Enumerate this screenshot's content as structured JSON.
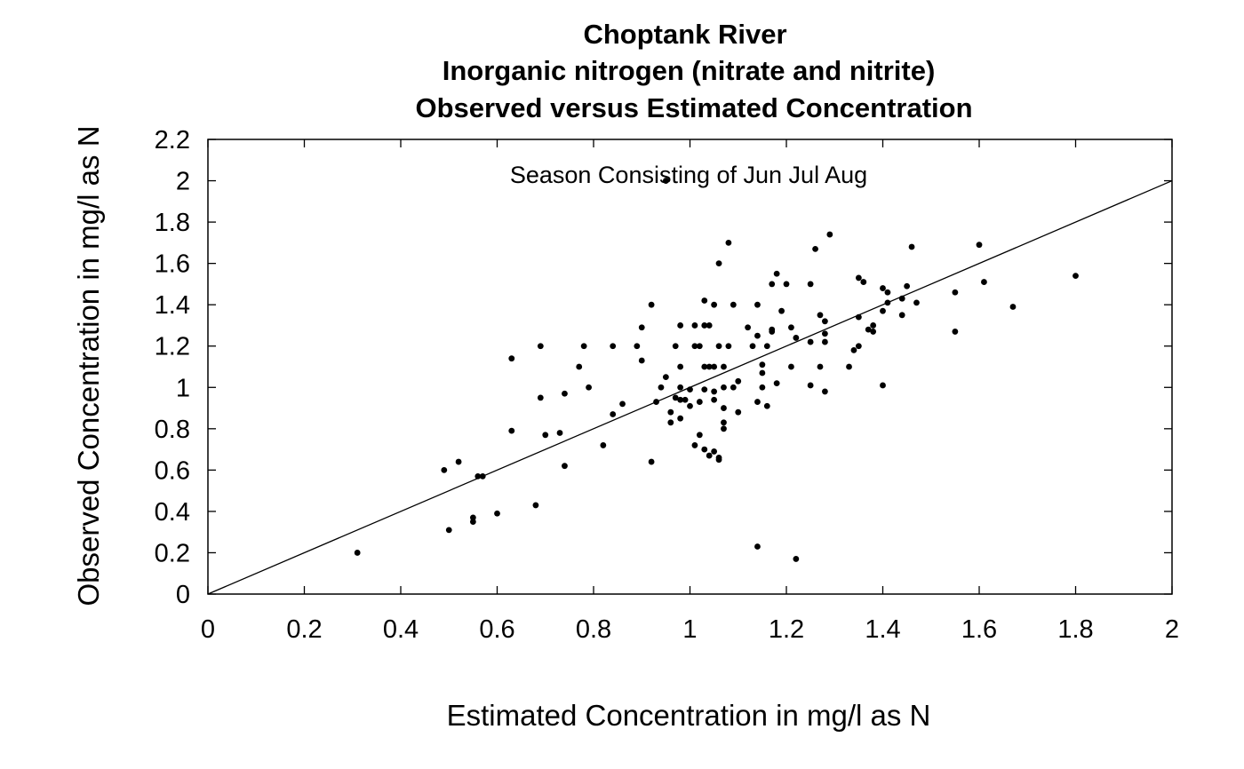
{
  "chart_data": {
    "type": "scatter",
    "title_lines": [
      "Choptank River",
      "Inorganic nitrogen (nitrate and nitrite)",
      "Observed versus Estimated Concentration"
    ],
    "xlabel": "Estimated Concentration in mg/l as N",
    "ylabel": "Observed Concentration in mg/l as N",
    "annotation": "Season Consisting of Jun Jul Aug",
    "xlim": [
      0,
      2
    ],
    "ylim": [
      0,
      2.2
    ],
    "xticks": [
      "0",
      "0.2",
      "0.4",
      "0.6",
      "0.8",
      "1",
      "1.2",
      "1.4",
      "1.6",
      "1.8",
      "2"
    ],
    "yticks": [
      "0",
      "0.2",
      "0.4",
      "0.6",
      "0.8",
      "1",
      "1.2",
      "1.4",
      "1.6",
      "1.8",
      "2",
      "2.2"
    ],
    "reference_line": {
      "from": [
        0,
        0
      ],
      "to": [
        2,
        2
      ]
    },
    "grid": false,
    "points": [
      [
        0.31,
        0.2
      ],
      [
        0.49,
        0.6
      ],
      [
        0.5,
        0.31
      ],
      [
        0.52,
        0.64
      ],
      [
        0.55,
        0.37
      ],
      [
        0.55,
        0.35
      ],
      [
        0.56,
        0.57
      ],
      [
        0.57,
        0.57
      ],
      [
        0.6,
        0.39
      ],
      [
        0.63,
        1.14
      ],
      [
        0.63,
        0.79
      ],
      [
        0.68,
        0.43
      ],
      [
        0.69,
        1.2
      ],
      [
        0.69,
        0.95
      ],
      [
        0.7,
        0.77
      ],
      [
        0.73,
        0.78
      ],
      [
        0.74,
        0.62
      ],
      [
        0.74,
        0.97
      ],
      [
        0.77,
        1.1
      ],
      [
        0.78,
        1.2
      ],
      [
        0.79,
        1.0
      ],
      [
        0.82,
        0.72
      ],
      [
        0.84,
        0.87
      ],
      [
        0.84,
        1.2
      ],
      [
        0.86,
        0.92
      ],
      [
        0.89,
        1.2
      ],
      [
        0.9,
        1.13
      ],
      [
        0.9,
        1.29
      ],
      [
        0.92,
        1.4
      ],
      [
        0.92,
        0.64
      ],
      [
        0.93,
        0.93
      ],
      [
        0.94,
        1.0
      ],
      [
        0.95,
        1.05
      ],
      [
        0.95,
        2.0
      ],
      [
        0.96,
        0.83
      ],
      [
        0.96,
        0.88
      ],
      [
        0.97,
        1.2
      ],
      [
        0.97,
        0.95
      ],
      [
        0.98,
        1.3
      ],
      [
        0.98,
        1.1
      ],
      [
        0.98,
        0.94
      ],
      [
        0.98,
        0.85
      ],
      [
        0.98,
        1.0
      ],
      [
        0.99,
        0.94
      ],
      [
        1.0,
        0.99
      ],
      [
        1.0,
        0.91
      ],
      [
        1.01,
        1.2
      ],
      [
        1.01,
        1.3
      ],
      [
        1.01,
        0.72
      ],
      [
        1.02,
        1.2
      ],
      [
        1.02,
        0.77
      ],
      [
        1.02,
        0.93
      ],
      [
        1.03,
        1.42
      ],
      [
        1.03,
        1.3
      ],
      [
        1.03,
        1.1
      ],
      [
        1.03,
        0.99
      ],
      [
        1.03,
        0.7
      ],
      [
        1.04,
        1.3
      ],
      [
        1.04,
        1.1
      ],
      [
        1.04,
        0.67
      ],
      [
        1.05,
        1.1
      ],
      [
        1.05,
        0.98
      ],
      [
        1.05,
        1.4
      ],
      [
        1.05,
        0.94
      ],
      [
        1.05,
        0.69
      ],
      [
        1.06,
        1.6
      ],
      [
        1.06,
        1.2
      ],
      [
        1.06,
        0.66
      ],
      [
        1.06,
        0.65
      ],
      [
        1.07,
        1.1
      ],
      [
        1.07,
        1.0
      ],
      [
        1.07,
        0.9
      ],
      [
        1.07,
        0.83
      ],
      [
        1.07,
        0.8
      ],
      [
        1.08,
        1.7
      ],
      [
        1.08,
        1.2
      ],
      [
        1.09,
        1.0
      ],
      [
        1.09,
        1.4
      ],
      [
        1.1,
        1.03
      ],
      [
        1.1,
        0.88
      ],
      [
        1.12,
        1.29
      ],
      [
        1.13,
        1.2
      ],
      [
        1.14,
        1.4
      ],
      [
        1.14,
        1.25
      ],
      [
        1.14,
        0.93
      ],
      [
        1.14,
        0.23
      ],
      [
        1.15,
        1.11
      ],
      [
        1.15,
        1.07
      ],
      [
        1.15,
        1.0
      ],
      [
        1.16,
        1.2
      ],
      [
        1.16,
        0.91
      ],
      [
        1.17,
        1.5
      ],
      [
        1.17,
        1.28
      ],
      [
        1.17,
        1.27
      ],
      [
        1.18,
        1.55
      ],
      [
        1.18,
        1.02
      ],
      [
        1.19,
        1.37
      ],
      [
        1.2,
        1.5
      ],
      [
        1.21,
        1.1
      ],
      [
        1.21,
        1.29
      ],
      [
        1.22,
        1.24
      ],
      [
        1.22,
        0.17
      ],
      [
        1.25,
        1.5
      ],
      [
        1.25,
        1.22
      ],
      [
        1.25,
        1.01
      ],
      [
        1.26,
        1.67
      ],
      [
        1.27,
        1.35
      ],
      [
        1.27,
        1.1
      ],
      [
        1.28,
        1.32
      ],
      [
        1.28,
        1.26
      ],
      [
        1.28,
        1.22
      ],
      [
        1.28,
        0.98
      ],
      [
        1.29,
        1.74
      ],
      [
        1.33,
        1.1
      ],
      [
        1.34,
        1.18
      ],
      [
        1.35,
        1.34
      ],
      [
        1.35,
        1.2
      ],
      [
        1.35,
        1.53
      ],
      [
        1.36,
        1.51
      ],
      [
        1.37,
        1.28
      ],
      [
        1.38,
        1.27
      ],
      [
        1.38,
        1.3
      ],
      [
        1.4,
        1.48
      ],
      [
        1.4,
        1.37
      ],
      [
        1.4,
        1.01
      ],
      [
        1.41,
        1.41
      ],
      [
        1.41,
        1.46
      ],
      [
        1.44,
        1.43
      ],
      [
        1.44,
        1.35
      ],
      [
        1.45,
        1.49
      ],
      [
        1.46,
        1.68
      ],
      [
        1.47,
        1.41
      ],
      [
        1.55,
        1.46
      ],
      [
        1.55,
        1.27
      ],
      [
        1.6,
        1.69
      ],
      [
        1.61,
        1.51
      ],
      [
        1.67,
        1.39
      ],
      [
        1.8,
        1.54
      ]
    ]
  }
}
